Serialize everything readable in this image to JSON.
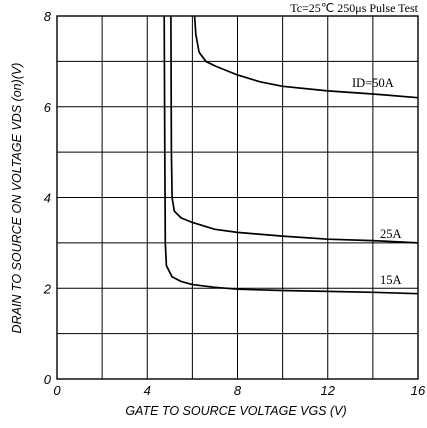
{
  "chart_data": {
    "type": "line",
    "title": "",
    "conditions": "Tc=25℃  250μs Pulse Test",
    "xlabel": "GATE TO SOURCE VOLTAGE  VGS (V)",
    "ylabel": "DRAIN TO SOURCE ON VOLTAGE  VDS (on)(V)",
    "xlim": [
      0,
      16
    ],
    "ylim": [
      0,
      8
    ],
    "grid": true,
    "x_tick_labels": [
      "0",
      "4",
      "8",
      "12",
      "16"
    ],
    "y_tick_labels": [
      "0",
      "2",
      "4",
      "6",
      "8"
    ],
    "series": [
      {
        "name": "ID=50A",
        "points": [
          [
            6.1,
            8.0
          ],
          [
            6.15,
            7.6
          ],
          [
            6.3,
            7.2
          ],
          [
            6.6,
            7.0
          ],
          [
            7.0,
            6.9
          ],
          [
            8.0,
            6.7
          ],
          [
            9.0,
            6.55
          ],
          [
            10.0,
            6.45
          ],
          [
            12.0,
            6.35
          ],
          [
            14.0,
            6.28
          ],
          [
            16.0,
            6.2
          ]
        ]
      },
      {
        "name": "25A",
        "points": [
          [
            5.05,
            8.0
          ],
          [
            5.07,
            5.0
          ],
          [
            5.1,
            4.0
          ],
          [
            5.2,
            3.7
          ],
          [
            5.5,
            3.55
          ],
          [
            6.0,
            3.45
          ],
          [
            7.0,
            3.3
          ],
          [
            8.0,
            3.23
          ],
          [
            10.0,
            3.15
          ],
          [
            12.0,
            3.08
          ],
          [
            14.0,
            3.05
          ],
          [
            16.0,
            3.0
          ]
        ]
      },
      {
        "name": "15A",
        "points": [
          [
            4.75,
            8.0
          ],
          [
            4.78,
            5.0
          ],
          [
            4.8,
            3.0
          ],
          [
            4.85,
            2.5
          ],
          [
            5.1,
            2.25
          ],
          [
            5.5,
            2.15
          ],
          [
            6.0,
            2.08
          ],
          [
            7.0,
            2.02
          ],
          [
            8.0,
            1.98
          ],
          [
            10.0,
            1.95
          ],
          [
            12.0,
            1.93
          ],
          [
            14.0,
            1.91
          ],
          [
            16.0,
            1.88
          ]
        ]
      }
    ]
  }
}
